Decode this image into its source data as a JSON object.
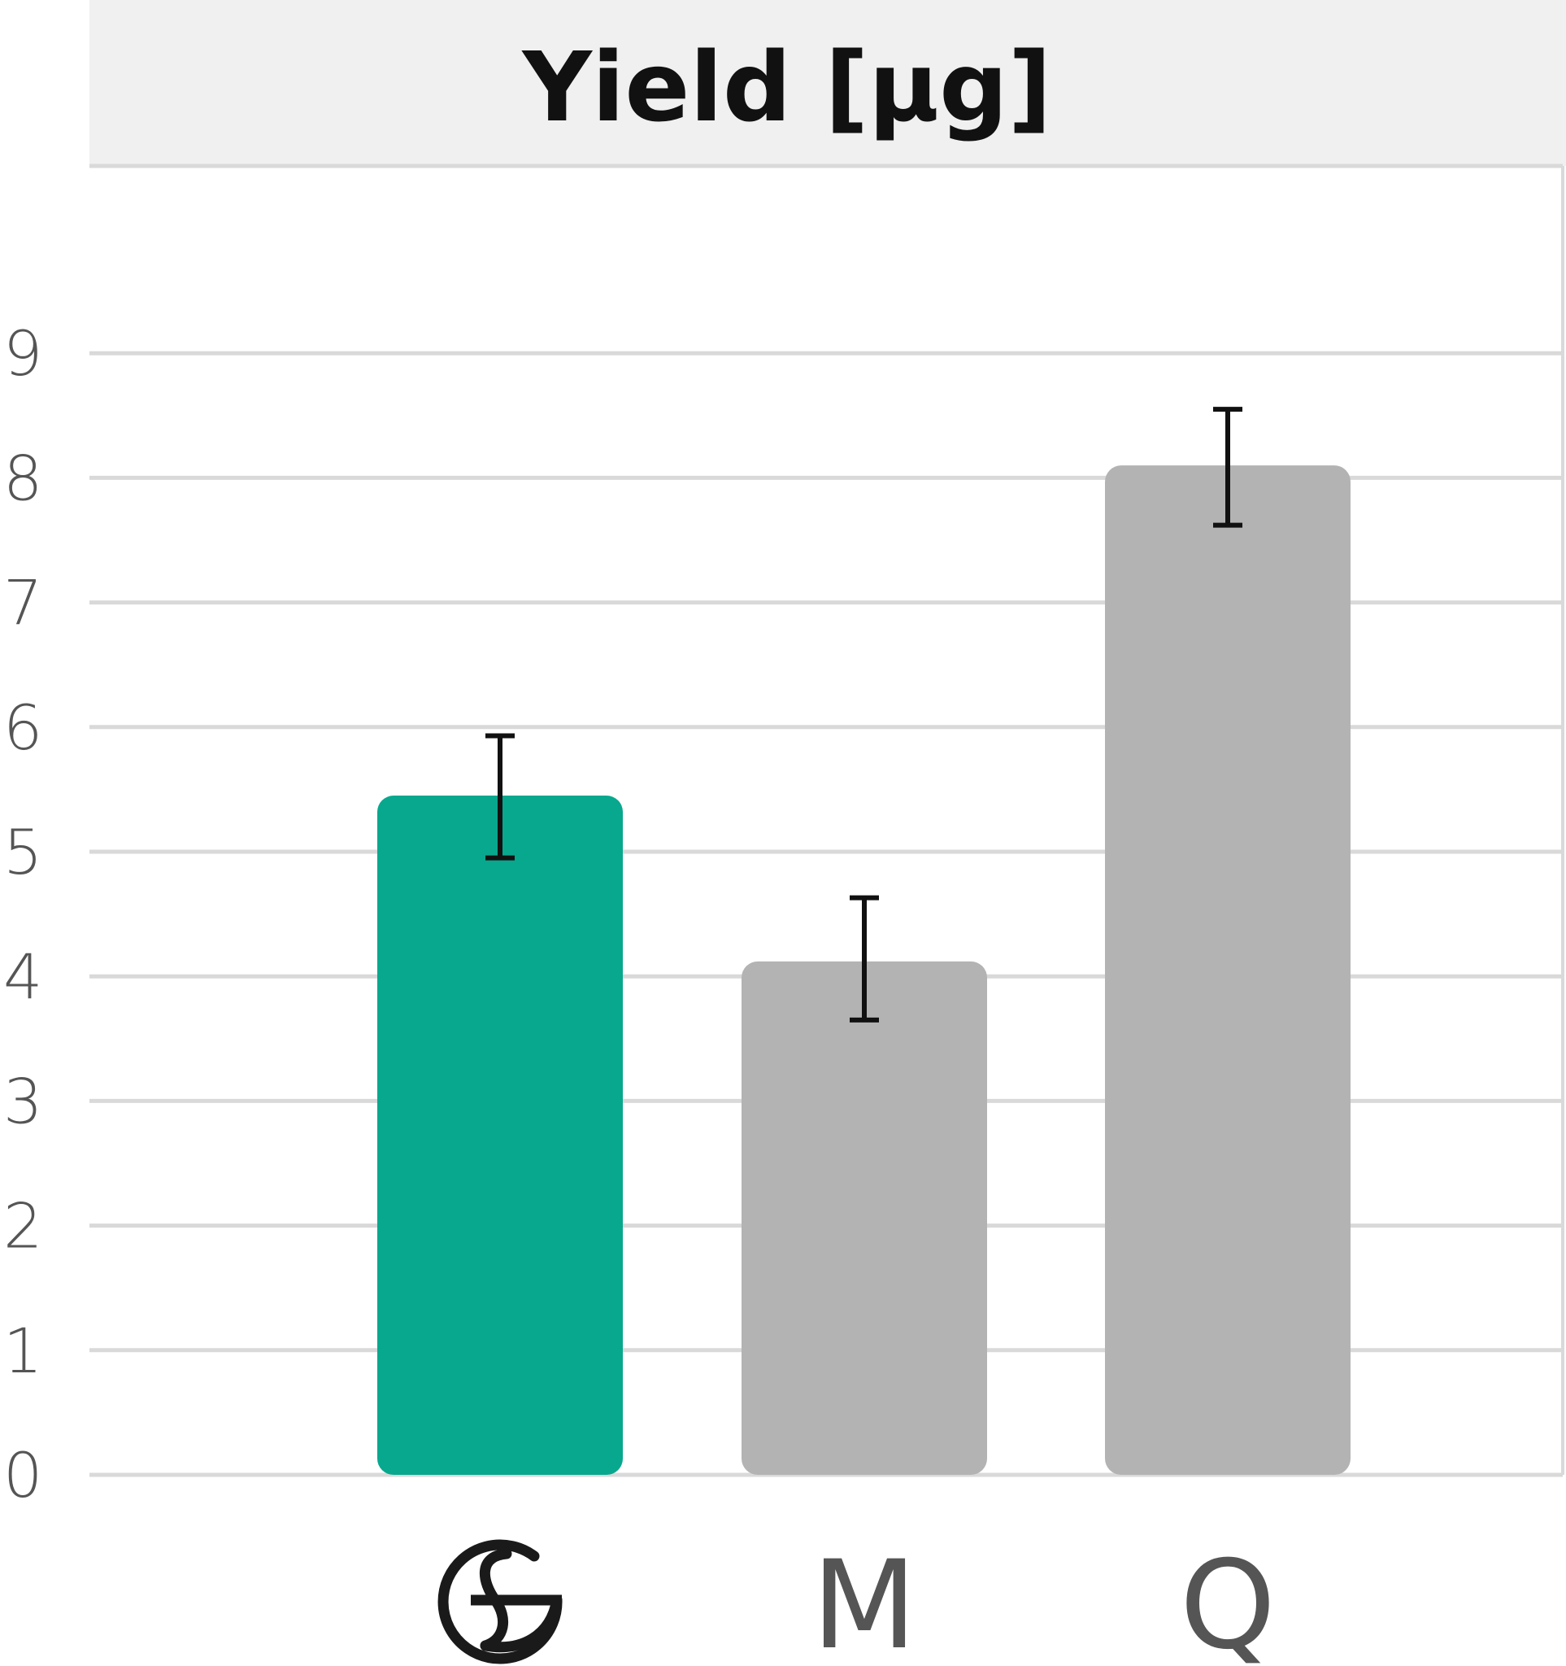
{
  "chart_data": {
    "type": "bar",
    "title": "Yield [µg]",
    "xlabel": "",
    "ylabel": "",
    "ylim": [
      0,
      10.5
    ],
    "yticks": [
      0,
      1,
      2,
      3,
      4,
      5,
      6,
      7,
      8,
      9
    ],
    "grid": true,
    "categories": [
      "logo",
      "M",
      "Q"
    ],
    "category_labels": [
      "",
      "M",
      "Q"
    ],
    "values": [
      5.45,
      4.12,
      8.1
    ],
    "error_bars": [
      {
        "low": 4.95,
        "high": 5.93
      },
      {
        "low": 3.65,
        "high": 4.63
      },
      {
        "low": 7.62,
        "high": 8.55
      }
    ],
    "colors": {
      "highlight_bar": "#07a88e",
      "other_bar": "#b3b3b3",
      "grid": "#d9d9d9",
      "title_band": "#f0f0f0",
      "error_bar": "#111111",
      "tick_text": "#555555"
    },
    "first_category_icon": "brand-logo-icon"
  }
}
